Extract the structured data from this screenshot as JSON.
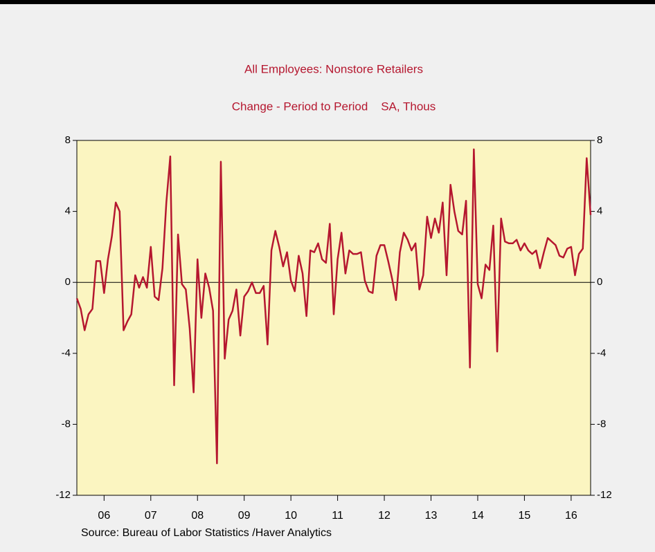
{
  "chart_data": {
    "type": "line",
    "title": "All Employees: Nonstore Retailers",
    "subtitle": "Change - Period to Period    SA, Thous",
    "source": "Source:  Bureau of Labor Statistics /Haver Analytics",
    "x": [
      2005.917,
      2006.0,
      2006.083,
      2006.167,
      2006.25,
      2006.333,
      2006.417,
      2006.5,
      2006.583,
      2006.667,
      2006.75,
      2006.833,
      2006.917,
      2007.0,
      2007.083,
      2007.167,
      2007.25,
      2007.333,
      2007.417,
      2007.5,
      2007.583,
      2007.667,
      2007.75,
      2007.833,
      2007.917,
      2008.0,
      2008.083,
      2008.167,
      2008.25,
      2008.333,
      2008.417,
      2008.5,
      2008.583,
      2008.667,
      2008.75,
      2008.833,
      2008.917,
      2009.0,
      2009.083,
      2009.167,
      2009.25,
      2009.333,
      2009.417,
      2009.5,
      2009.583,
      2009.667,
      2009.75,
      2009.833,
      2009.917,
      2010.0,
      2010.083,
      2010.167,
      2010.25,
      2010.333,
      2010.417,
      2010.5,
      2010.583,
      2010.667,
      2010.75,
      2010.833,
      2010.917,
      2011.0,
      2011.083,
      2011.167,
      2011.25,
      2011.333,
      2011.417,
      2011.5,
      2011.583,
      2011.667,
      2011.75,
      2011.833,
      2011.917,
      2012.0,
      2012.083,
      2012.167,
      2012.25,
      2012.333,
      2012.417,
      2012.5,
      2012.583,
      2012.667,
      2012.75,
      2012.833,
      2012.917,
      2013.0,
      2013.083,
      2013.167,
      2013.25,
      2013.333,
      2013.417,
      2013.5,
      2013.583,
      2013.667,
      2013.75,
      2013.833,
      2013.917,
      2014.0,
      2014.083,
      2014.167,
      2014.25,
      2014.333,
      2014.417,
      2014.5,
      2014.583,
      2014.667,
      2014.75,
      2014.833,
      2014.917,
      2015.0,
      2015.083,
      2015.167,
      2015.25,
      2015.333,
      2015.417,
      2015.5,
      2015.583,
      2015.667,
      2015.75,
      2015.833,
      2015.917,
      2016.0,
      2016.083,
      2016.167,
      2016.25,
      2016.333,
      2016.417,
      2016.5,
      2016.583,
      2016.667,
      2016.75,
      2016.833,
      2016.917
    ],
    "series": [
      {
        "name": "All Employees: Nonstore Retailers",
        "color": "#b5172f",
        "values": [
          -0.9,
          -1.5,
          -2.7,
          -1.8,
          -1.5,
          1.2,
          1.2,
          -0.6,
          1.3,
          2.6,
          4.5,
          4.0,
          -2.7,
          -2.2,
          -1.8,
          0.4,
          -0.3,
          0.3,
          -0.3,
          2.0,
          -0.8,
          -1.0,
          0.8,
          4.5,
          7.1,
          -5.8,
          2.7,
          -0.1,
          -0.4,
          -2.6,
          -6.2,
          1.3,
          -2.0,
          0.5,
          -0.3,
          -1.6,
          -10.2,
          6.8,
          -4.3,
          -2.1,
          -1.6,
          -0.4,
          -3.0,
          -0.8,
          -0.5,
          0.0,
          -0.6,
          -0.6,
          -0.2,
          -3.5,
          1.8,
          2.9,
          2.0,
          0.9,
          1.7,
          0.1,
          -0.5,
          1.5,
          0.5,
          -1.9,
          1.8,
          1.7,
          2.2,
          1.3,
          1.1,
          3.3,
          -1.8,
          1.3,
          2.8,
          0.5,
          1.8,
          1.6,
          1.6,
          1.7,
          0.1,
          -0.5,
          -0.6,
          1.5,
          2.1,
          2.1,
          1.2,
          0.2,
          -1.0,
          1.7,
          2.8,
          2.4,
          1.8,
          2.2,
          -0.4,
          0.4,
          3.7,
          2.5,
          3.6,
          2.8,
          4.5,
          0.4,
          5.5,
          4.0,
          2.9,
          2.7,
          4.6,
          -4.8,
          7.5,
          -0.1,
          -0.9,
          1.0,
          0.7,
          3.2,
          -3.9,
          3.6,
          2.3,
          2.2,
          2.2,
          2.4,
          1.8,
          2.2,
          1.8,
          1.6,
          1.8,
          0.8,
          1.7,
          2.5,
          2.3,
          2.1,
          1.5,
          1.4,
          1.9,
          2.0,
          0.4,
          1.6,
          1.9,
          7.0,
          3.8
        ]
      }
    ],
    "xlim": [
      2005.917,
      2016.917
    ],
    "xticks": [
      {
        "value": 2006.5,
        "label": "06"
      },
      {
        "value": 2007.5,
        "label": "07"
      },
      {
        "value": 2008.5,
        "label": "08"
      },
      {
        "value": 2009.5,
        "label": "09"
      },
      {
        "value": 2010.5,
        "label": "10"
      },
      {
        "value": 2011.5,
        "label": "11"
      },
      {
        "value": 2012.5,
        "label": "12"
      },
      {
        "value": 2013.5,
        "label": "13"
      },
      {
        "value": 2014.5,
        "label": "14"
      },
      {
        "value": 2015.5,
        "label": "15"
      },
      {
        "value": 2016.5,
        "label": "16"
      }
    ],
    "ylim": [
      -12,
      8
    ],
    "yticks": [
      -12,
      -8,
      -4,
      0,
      4,
      8
    ],
    "y2lim": [
      -12,
      8
    ],
    "y2ticks": [
      -12,
      -8,
      -4,
      0,
      4,
      8
    ],
    "zero_line": true,
    "background": "#fbf5c1"
  }
}
